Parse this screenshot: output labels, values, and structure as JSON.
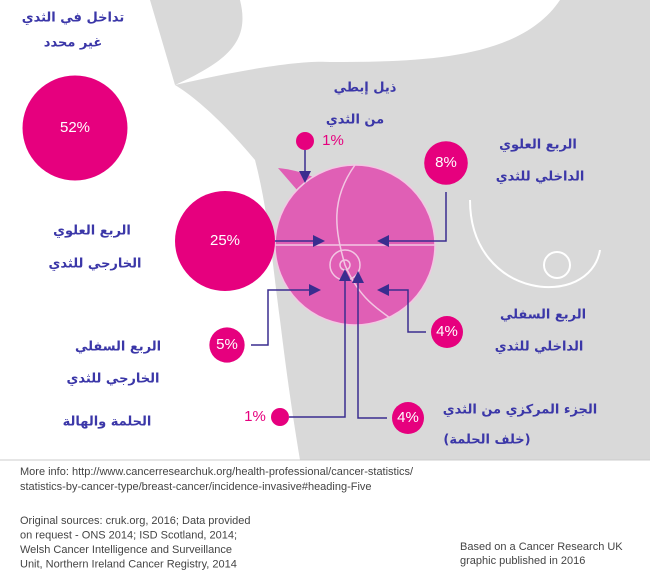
{
  "regions": [
    {
      "label": [
        "تداخل في الثدي",
        "غير محدد"
      ],
      "value": 52,
      "value_label": "52%"
    },
    {
      "label": [
        "ذيل إبطي",
        "من الثدي"
      ],
      "value": 1,
      "value_label": "1%"
    },
    {
      "label": [
        "الربع العلوي",
        "الداخلي للثدي"
      ],
      "value": 8,
      "value_label": "8%"
    },
    {
      "label": [
        "الربع العلوي",
        "الخارجي للثدي"
      ],
      "value": 25,
      "value_label": "25%"
    },
    {
      "label": [
        "الربع السفلي",
        "الخارجي للثدي"
      ],
      "value": 5,
      "value_label": "5%"
    },
    {
      "label": [
        "الربع السفلي",
        "الداخلي للثدي"
      ],
      "value": 4,
      "value_label": "4%"
    },
    {
      "label": [
        "الحلمة والهالة"
      ],
      "value": 1,
      "value_label": "1%"
    },
    {
      "label": [
        "الجزء المركزي من الثدي",
        "(خلف الحلمة)"
      ],
      "value": 4,
      "value_label": "4%"
    }
  ],
  "footer": {
    "more_info": [
      "More info: http://www.cancerresearchuk.org/health-professional/cancer-statistics/",
      "statistics-by-cancer-type/breast-cancer/incidence-invasive#heading-Five"
    ],
    "sources": [
      "Original sources: cruk.org, 2016; Data provided",
      "on request - ONS 2014; ISD Scotland, 2014;",
      "Welsh Cancer Intelligence and Surveillance",
      "Unit, Northern Ireland Cancer Registry, 2014"
    ],
    "credit": [
      "Based on a Cancer Research UK",
      "graphic published in 2016"
    ]
  }
}
